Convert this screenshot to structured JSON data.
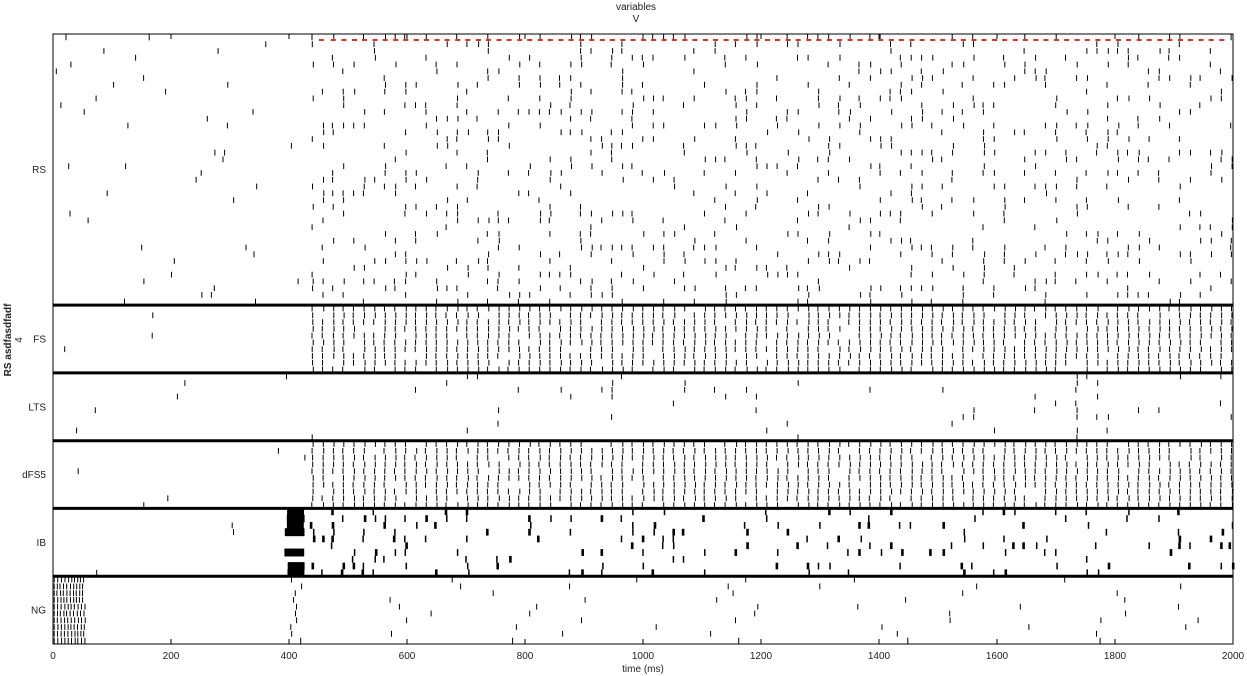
{
  "chart_data": {
    "type": "raster",
    "title": [
      "variables",
      "V"
    ],
    "xlabel": "time (ms)",
    "ylabel": [
      "RS asdfasdfadf",
      "4"
    ],
    "xlim": [
      0,
      2000
    ],
    "xticks": [
      0,
      200,
      400,
      600,
      800,
      1000,
      1200,
      1400,
      1600,
      1800,
      2000
    ],
    "groups": [
      {
        "name": "RS",
        "rows": 40,
        "mode": "rs"
      },
      {
        "name": "FS",
        "rows": 10,
        "mode": "fs"
      },
      {
        "name": "LTS",
        "rows": 10,
        "mode": "lts"
      },
      {
        "name": "dFS5",
        "rows": 10,
        "mode": "fs"
      },
      {
        "name": "IB",
        "rows": 10,
        "mode": "ib"
      },
      {
        "name": "NG",
        "rows": 10,
        "mode": "ng"
      }
    ],
    "gamma_cycle_ms": 17.5,
    "rhythm_onset_ms": 440,
    "ib_burst_ms": [
      400,
      425
    ],
    "ng_burst_ms": [
      0,
      55
    ],
    "marker_times_ms": [
      455,
      475,
      493,
      511,
      528,
      546,
      563,
      581,
      598,
      616,
      633,
      651,
      668,
      686,
      703,
      721,
      738,
      756,
      773,
      791,
      808,
      826,
      843,
      861,
      878,
      896,
      913,
      931,
      948,
      966,
      983,
      1001,
      1018,
      1036,
      1053,
      1071,
      1088,
      1106,
      1123,
      1141,
      1158,
      1176,
      1193,
      1211,
      1228,
      1246,
      1263,
      1281,
      1298,
      1316,
      1333,
      1351,
      1368,
      1386,
      1403,
      1421,
      1438,
      1456,
      1473,
      1491,
      1508,
      1526,
      1543,
      1561,
      1578,
      1596,
      1613,
      1631,
      1648,
      1666,
      1683,
      1701,
      1718,
      1736,
      1753,
      1771,
      1788,
      1806,
      1823,
      1841,
      1858,
      1876,
      1893,
      1911,
      1928,
      1946,
      1963,
      1981
    ],
    "marker_color": "#e0302a",
    "spike_color": "#000000"
  }
}
